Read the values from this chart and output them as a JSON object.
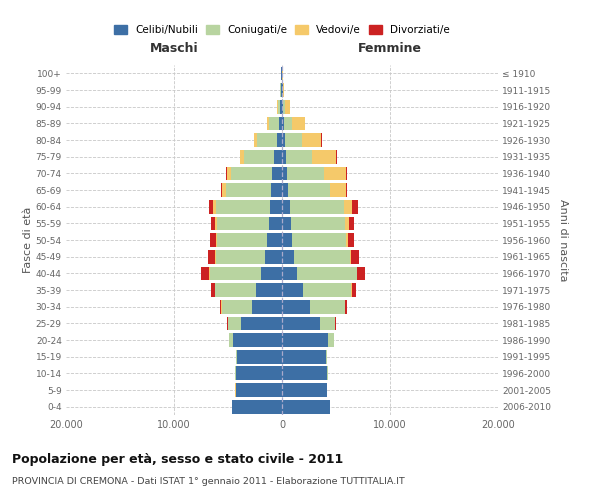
{
  "age_groups": [
    "0-4",
    "5-9",
    "10-14",
    "15-19",
    "20-24",
    "25-29",
    "30-34",
    "35-39",
    "40-44",
    "45-49",
    "50-54",
    "55-59",
    "60-64",
    "65-69",
    "70-74",
    "75-79",
    "80-84",
    "85-89",
    "90-94",
    "95-99",
    "100+"
  ],
  "birth_years": [
    "2006-2010",
    "2001-2005",
    "1996-2000",
    "1991-1995",
    "1986-1990",
    "1981-1985",
    "1976-1980",
    "1971-1975",
    "1966-1970",
    "1961-1965",
    "1956-1960",
    "1951-1955",
    "1946-1950",
    "1941-1945",
    "1936-1940",
    "1931-1935",
    "1926-1930",
    "1921-1925",
    "1916-1920",
    "1911-1915",
    "≤ 1910"
  ],
  "males": {
    "celibe": [
      4600,
      4300,
      4300,
      4200,
      4500,
      3800,
      2800,
      2400,
      1900,
      1600,
      1400,
      1200,
      1100,
      1000,
      900,
      700,
      500,
      300,
      150,
      80,
      50
    ],
    "coniugato": [
      2,
      5,
      10,
      80,
      400,
      1200,
      2800,
      3800,
      4800,
      4500,
      4600,
      4800,
      5000,
      4200,
      3800,
      2800,
      1800,
      900,
      250,
      80,
      20
    ],
    "vedovo": [
      1,
      1,
      2,
      5,
      10,
      20,
      30,
      50,
      80,
      100,
      150,
      200,
      300,
      350,
      400,
      350,
      250,
      150,
      80,
      20,
      5
    ],
    "divorziato": [
      1,
      1,
      2,
      5,
      20,
      50,
      100,
      300,
      700,
      650,
      500,
      400,
      350,
      100,
      100,
      80,
      30,
      20,
      10,
      5,
      2
    ]
  },
  "females": {
    "nubile": [
      4400,
      4200,
      4200,
      4100,
      4300,
      3500,
      2600,
      1900,
      1400,
      1100,
      900,
      800,
      700,
      600,
      500,
      400,
      250,
      200,
      100,
      60,
      30
    ],
    "coniugata": [
      2,
      5,
      15,
      100,
      500,
      1400,
      3200,
      4500,
      5500,
      5200,
      5000,
      5000,
      5000,
      3800,
      3400,
      2400,
      1600,
      700,
      200,
      60,
      15
    ],
    "vedova": [
      1,
      1,
      2,
      5,
      10,
      20,
      30,
      50,
      80,
      100,
      200,
      400,
      800,
      1500,
      2000,
      2200,
      1800,
      1200,
      400,
      100,
      30
    ],
    "divorziata": [
      1,
      1,
      2,
      5,
      30,
      60,
      150,
      400,
      750,
      750,
      600,
      500,
      500,
      150,
      150,
      80,
      30,
      20,
      10,
      5,
      2
    ]
  },
  "colors": {
    "celibe": "#3d6fa5",
    "coniugato": "#b8d4a0",
    "vedovo": "#f5c96a",
    "divorziato": "#cc2222"
  },
  "xlim": 20000,
  "title": "Popolazione per età, sesso e stato civile - 2011",
  "subtitle": "PROVINCIA DI CREMONA - Dati ISTAT 1° gennaio 2011 - Elaborazione TUTTITALIA.IT",
  "ylabel_left": "Fasce di età",
  "ylabel_right": "Anni di nascita",
  "xlabel_left": "Maschi",
  "xlabel_right": "Femmine",
  "bg_color": "#ffffff",
  "grid_color": "#c8c8c8"
}
